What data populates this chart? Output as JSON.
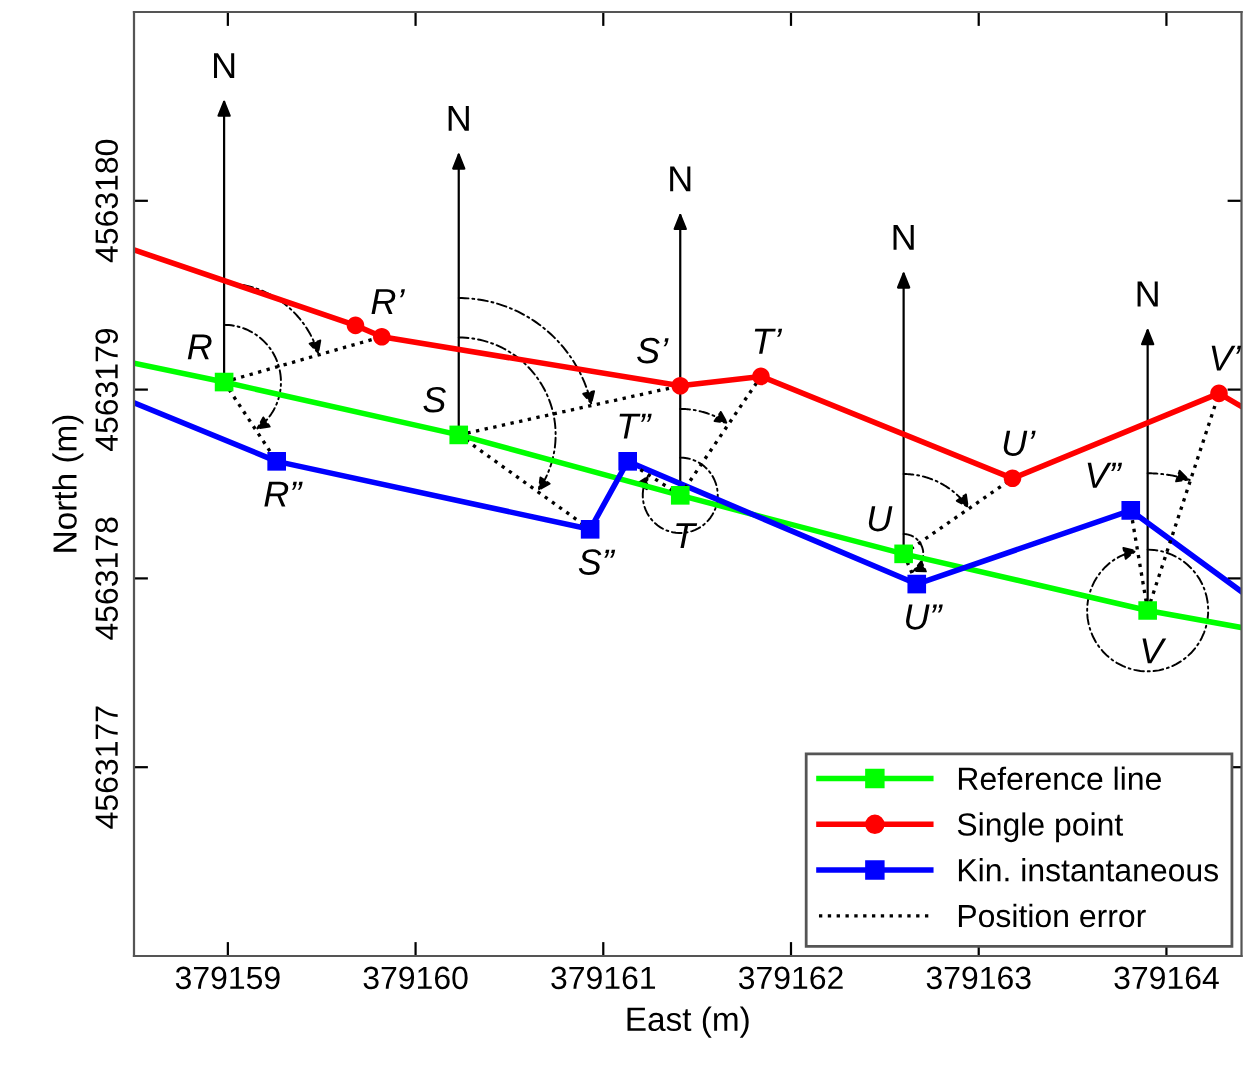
{
  "chart_data": {
    "type": "line",
    "xlabel": "East (m)",
    "ylabel": "North (m)",
    "xlim": [
      379158.5,
      379164.4
    ],
    "ylim": [
      4563176,
      4563181
    ],
    "xticks": [
      379159,
      379160,
      379161,
      379162,
      379163,
      379164
    ],
    "yticks": [
      4563177,
      4563178,
      4563179,
      4563180
    ],
    "grid": false,
    "legend": "bottom right",
    "series": [
      {
        "name": "Reference line",
        "color": "#00ff00",
        "marker": "square",
        "line_style": "solid",
        "x": [
          379158.5,
          379158.98,
          379160.23,
          379161.41,
          379162.6,
          379163.9,
          379164.4
        ],
        "values": [
          4563179.14,
          4563179.04,
          4563178.76,
          4563178.44,
          4563178.13,
          4563177.83,
          4563177.74
        ]
      },
      {
        "name": "Single point",
        "color": "#ff0000",
        "marker": "circle",
        "line_style": "solid",
        "x": [
          379158.5,
          379159.68,
          379159.82,
          379161.41,
          379161.84,
          379163.18,
          379164.28,
          379164.4
        ],
        "values": [
          4563179.74,
          4563179.34,
          4563179.28,
          4563179.02,
          4563179.07,
          4563178.53,
          4563178.98,
          4563178.91
        ]
      },
      {
        "name": "Kin. instantaneous",
        "color": "#0000ff",
        "marker": "square",
        "line_style": "solid",
        "x": [
          379158.5,
          379159.26,
          379160.93,
          379161.13,
          379162.67,
          379163.81,
          379164.4
        ],
        "values": [
          4563178.93,
          4563178.62,
          4563178.26,
          4563178.62,
          4563177.97,
          4563178.36,
          4563177.93
        ]
      },
      {
        "name": "Position error",
        "color": "#000000",
        "marker": "none",
        "line_style": "dotted",
        "x": [
          379158.98,
          379159.82,
          null,
          379158.98,
          379159.26,
          null,
          379160.23,
          379161.41,
          null,
          379160.23,
          379160.93,
          null,
          379161.41,
          379161.84,
          null,
          379161.41,
          379161.13,
          null,
          379162.6,
          379163.18,
          null,
          379162.6,
          379162.67,
          null,
          379163.9,
          379164.28,
          null,
          379163.9,
          379163.81
        ],
        "values": [
          4563179.04,
          4563179.28,
          null,
          4563179.04,
          4563178.62,
          null,
          4563178.76,
          4563179.02,
          null,
          4563178.76,
          4563178.26,
          null,
          4563178.44,
          4563179.07,
          null,
          4563178.44,
          4563178.62,
          null,
          4563178.13,
          4563178.53,
          null,
          4563178.13,
          4563177.97,
          null,
          4563177.83,
          4563178.98,
          null,
          4563177.83,
          4563178.36
        ]
      }
    ],
    "annotations": [
      {
        "text": "N",
        "x": 379158.98,
        "y": 4563179.04
      },
      {
        "text": "N",
        "x": 379160.23,
        "y": 4563178.76
      },
      {
        "text": "N",
        "x": 379161.41,
        "y": 4563178.44
      },
      {
        "text": "N",
        "x": 379162.6,
        "y": 4563178.13
      },
      {
        "text": "N",
        "x": 379163.9,
        "y": 4563177.83
      },
      {
        "text": "R",
        "x": 379158.98,
        "y": 4563179.04
      },
      {
        "text": "R’",
        "x": 379159.82,
        "y": 4563179.28
      },
      {
        "text": "R”",
        "x": 379159.26,
        "y": 4563178.62
      },
      {
        "text": "S",
        "x": 379160.23,
        "y": 4563178.76
      },
      {
        "text": "S’",
        "x": 379161.41,
        "y": 4563179.02
      },
      {
        "text": "S”",
        "x": 379160.93,
        "y": 4563178.26
      },
      {
        "text": "T”",
        "x": 379161.13,
        "y": 4563178.62
      },
      {
        "text": "T",
        "x": 379161.41,
        "y": 4563178.44
      },
      {
        "text": "T’",
        "x": 379161.84,
        "y": 4563179.07
      },
      {
        "text": "U",
        "x": 379162.6,
        "y": 4563178.13
      },
      {
        "text": "U’",
        "x": 379163.18,
        "y": 4563178.53
      },
      {
        "text": "U”",
        "x": 379162.67,
        "y": 4563177.97
      },
      {
        "text": "V”",
        "x": 379163.81,
        "y": 4563178.36
      },
      {
        "text": "V",
        "x": 379163.9,
        "y": 4563177.83
      },
      {
        "text": "V’",
        "x": 379164.28,
        "y": 4563178.98
      }
    ]
  }
}
